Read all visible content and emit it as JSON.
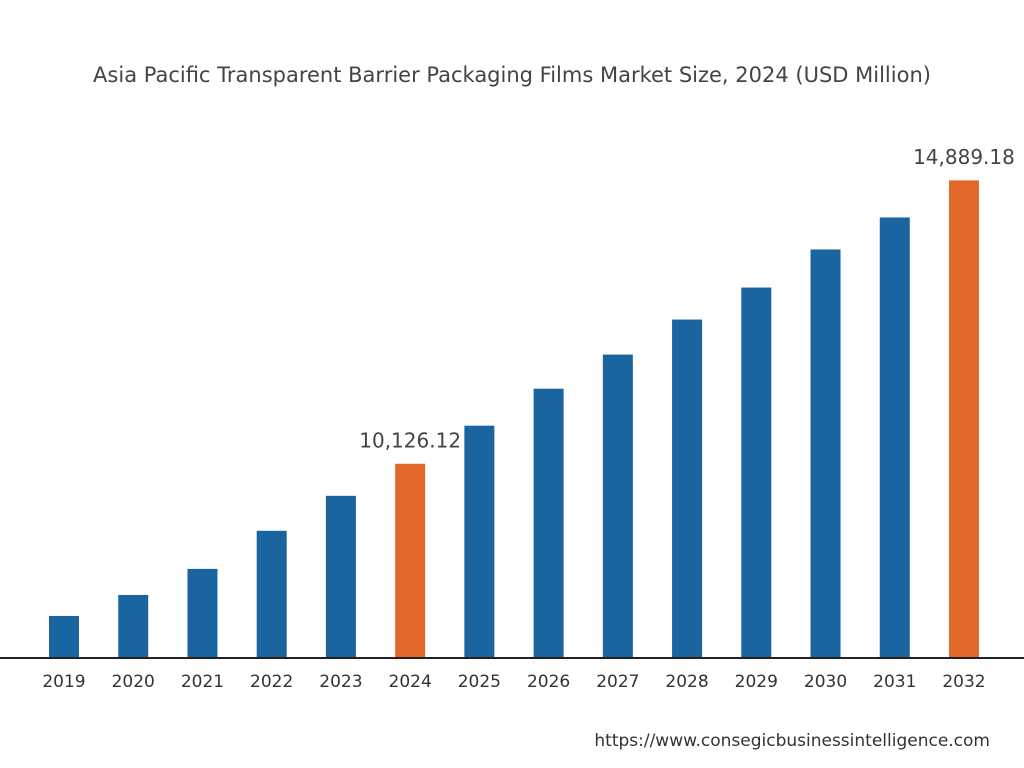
{
  "chart_data": {
    "type": "bar",
    "title": "Asia Pacific Transparent Barrier Packaging Films Market Size, 2024 (USD Million)",
    "categories": [
      "2019",
      "2020",
      "2021",
      "2022",
      "2023",
      "2024",
      "2025",
      "2026",
      "2027",
      "2028",
      "2029",
      "2030",
      "2031",
      "2032"
    ],
    "values": [
      7568,
      7921,
      8359,
      8999,
      9587,
      10126.12,
      10766,
      11388,
      11961,
      12550,
      13088,
      13728,
      14266,
      14889.18
    ],
    "value_labels": [
      null,
      null,
      null,
      null,
      null,
      "10,126.12",
      null,
      null,
      null,
      null,
      null,
      null,
      null,
      "14,889.18"
    ],
    "colors": [
      "#1a64a0",
      "#1a64a0",
      "#1a64a0",
      "#1a64a0",
      "#1a64a0",
      "#e2682a",
      "#1a64a0",
      "#1a64a0",
      "#1a64a0",
      "#1a64a0",
      "#1a64a0",
      "#1a64a0",
      "#1a64a0",
      "#e2682a"
    ],
    "ylim": [
      6861,
      15400
    ],
    "source": "https://www.consegicbusinessintelligence.com"
  }
}
